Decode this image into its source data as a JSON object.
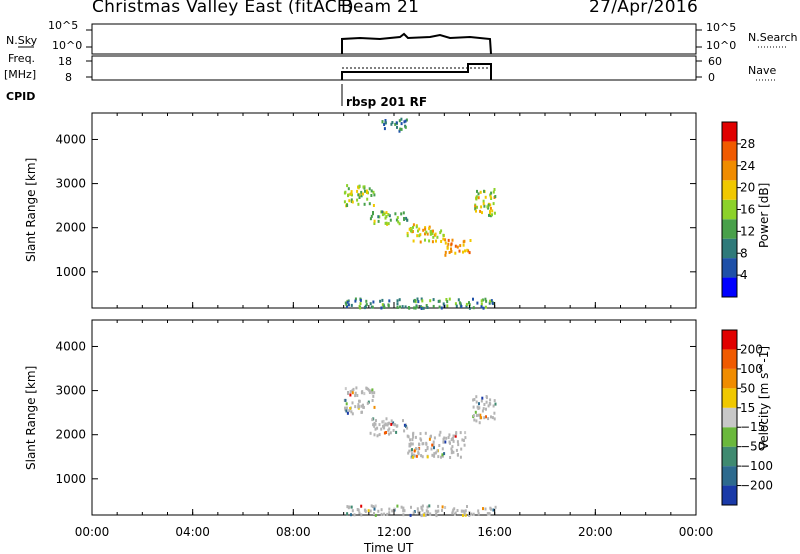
{
  "header": {
    "title": "Christmas Valley East (fitACF)",
    "beam": "Beam 21",
    "date": "27/Apr/2016"
  },
  "top_panels": {
    "nsky": {
      "label": "N.Sky",
      "left_ticks": [
        "10^5",
        "10^0"
      ],
      "right_ticks": [
        "10^5",
        "10^0"
      ],
      "right_label": "N.Search"
    },
    "freq": {
      "label_line1": "Freq.",
      "label_line2": "[MHz]",
      "left_ticks": [
        "18",
        "8"
      ],
      "right_ticks": [
        "60",
        "0"
      ],
      "right_label": "Nave"
    },
    "cpid": {
      "label": "CPID",
      "program": "rbsp 201 RF"
    }
  },
  "colors": {
    "power_scale": [
      "#0000ff",
      "#1e50a8",
      "#2f7a7a",
      "#48a04a",
      "#8cd22a",
      "#f0c800",
      "#f08c00",
      "#f05a00",
      "#e00000"
    ],
    "velocity_scale": [
      "#1a3aa8",
      "#2d6a8e",
      "#3f8a70",
      "#6ab83c",
      "#c8c8c8",
      "#f0c800",
      "#f08c00",
      "#f05a00",
      "#e00000"
    ],
    "ground_scatter": "#b4b4b4"
  },
  "chart_data": [
    {
      "type": "heatmap",
      "name": "power",
      "ylabel": "Slant Range [km]",
      "xlabel": "",
      "x_range_hours": [
        0,
        24
      ],
      "ylim": [
        180,
        4600
      ],
      "y_ticks": [
        1000,
        2000,
        3000,
        4000
      ],
      "colorbar": {
        "label": "Power [dB]",
        "range": [
          0,
          32
        ],
        "ticks": [
          "4",
          "8",
          "12",
          "16",
          "20",
          "24",
          "28"
        ]
      },
      "observation_window_hours": [
        10.0,
        16.0
      ],
      "data_regions": [
        {
          "hours": [
            10.0,
            11.2
          ],
          "range_km": [
            2500,
            3000
          ],
          "value_db": 16
        },
        {
          "hours": [
            11.0,
            12.5
          ],
          "range_km": [
            2100,
            2400
          ],
          "value_db": 14
        },
        {
          "hours": [
            12.5,
            14.0
          ],
          "range_km": [
            1700,
            2100
          ],
          "value_db": 20
        },
        {
          "hours": [
            14.0,
            15.0
          ],
          "range_km": [
            1400,
            1750
          ],
          "value_db": 24
        },
        {
          "hours": [
            15.1,
            16.0
          ],
          "range_km": [
            2300,
            2900
          ],
          "value_db": 18
        },
        {
          "hours": [
            11.5,
            12.5
          ],
          "range_km": [
            4200,
            4500
          ],
          "value_db": 8
        },
        {
          "hours": [
            10.0,
            16.0
          ],
          "range_km": [
            200,
            420
          ],
          "value_db": 10
        }
      ]
    },
    {
      "type": "heatmap",
      "name": "velocity",
      "ylabel": "Slant Range [km]",
      "xlabel": "Time UT",
      "x_range_hours": [
        0,
        24
      ],
      "ylim": [
        180,
        4600
      ],
      "y_ticks": [
        1000,
        2000,
        3000,
        4000
      ],
      "x_ticks": [
        "00:00",
        "04:00",
        "08:00",
        "12:00",
        "16:00",
        "20:00",
        "00:00"
      ],
      "colorbar": {
        "label": "Velocity [m s^-1]",
        "ticks": [
          "200",
          "100",
          "50",
          "15",
          "−15",
          "−50",
          "−100",
          "−200"
        ]
      },
      "observation_window_hours": [
        10.0,
        16.0
      ],
      "data_regions": [
        {
          "hours": [
            10.0,
            11.2
          ],
          "range_km": [
            2500,
            3100
          ],
          "value": "ground"
        },
        {
          "hours": [
            11.0,
            12.5
          ],
          "range_km": [
            2000,
            2400
          ],
          "value": "ground"
        },
        {
          "hours": [
            12.5,
            14.8
          ],
          "range_km": [
            1500,
            2100
          ],
          "value": "ground"
        },
        {
          "hours": [
            15.1,
            16.0
          ],
          "range_km": [
            2300,
            2900
          ],
          "value": "ground"
        },
        {
          "hours": [
            10.0,
            16.0
          ],
          "range_km": [
            200,
            420
          ],
          "value": "ground"
        }
      ]
    }
  ]
}
